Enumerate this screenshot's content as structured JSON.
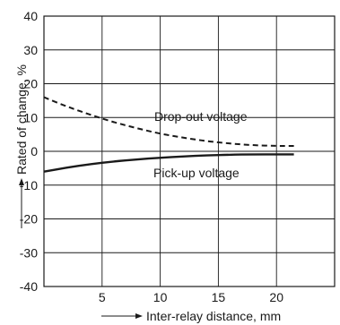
{
  "chart_data": {
    "type": "line",
    "xlabel": "Inter-relay distance, mm",
    "ylabel": "Rated of change, %",
    "xlim": [
      0,
      25
    ],
    "ylim": [
      -40,
      40
    ],
    "x_ticks": [
      5,
      10,
      15,
      20
    ],
    "y_ticks": [
      40,
      30,
      20,
      10,
      0,
      -10,
      -20,
      -30,
      -40
    ],
    "grid": true,
    "series": [
      {
        "name": "Drop-out voltage",
        "style": "dashed",
        "x": [
          0,
          2,
          4,
          6,
          8,
          10,
          12,
          14,
          16,
          18,
          20,
          21.5
        ],
        "y": [
          16,
          13.2,
          10.8,
          8.6,
          6.8,
          5.2,
          4.0,
          3.0,
          2.3,
          1.8,
          1.6,
          1.6
        ]
      },
      {
        "name": "Pick-up voltage",
        "style": "solid",
        "x": [
          0,
          2,
          4,
          6,
          8,
          10,
          12,
          14,
          16,
          18,
          20,
          21.5
        ],
        "y": [
          -6,
          -4.8,
          -3.8,
          -3.0,
          -2.4,
          -1.9,
          -1.5,
          -1.2,
          -1.0,
          -0.9,
          -0.9,
          -0.9
        ]
      }
    ]
  }
}
